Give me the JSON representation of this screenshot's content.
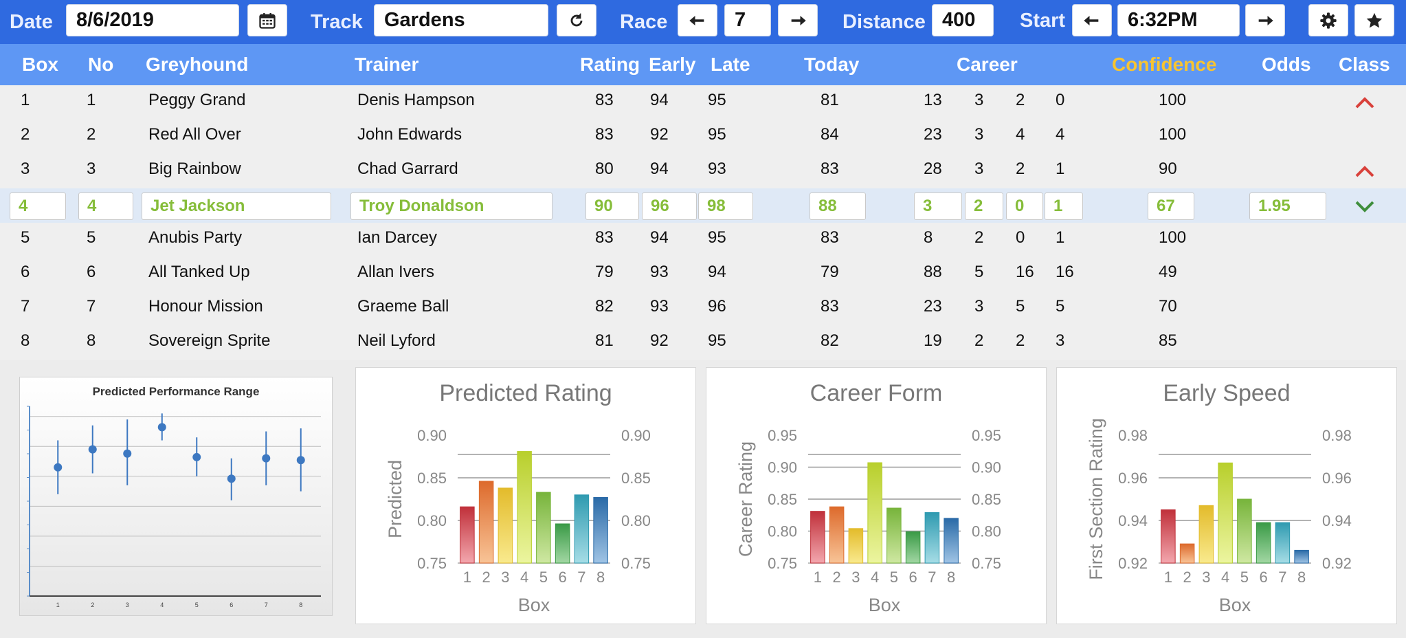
{
  "toolbar": {
    "date_label": "Date",
    "date_value": "8/6/2019",
    "track_label": "Track",
    "track_value": "Gardens",
    "race_label": "Race",
    "race_value": "7",
    "distance_label": "Distance",
    "distance_value": "400",
    "start_label": "Start",
    "start_value": "6:32PM",
    "icons": [
      "calendar-icon",
      "refresh-icon",
      "arrow-left-icon",
      "arrow-right-icon",
      "gear-icon",
      "star-icon"
    ]
  },
  "columns": {
    "box": "Box",
    "no": "No",
    "greyhound": "Greyhound",
    "trainer": "Trainer",
    "rating": "Rating",
    "early": "Early",
    "late": "Late",
    "today": "Today",
    "career": "Career",
    "confidence": "Confidence",
    "odds": "Odds",
    "class": "Class"
  },
  "rows": [
    {
      "box": "1",
      "no": "1",
      "greyhound": "Peggy Grand",
      "trainer": "Denis Hampson",
      "rating": "83",
      "early": "94",
      "late": "95",
      "today": "81",
      "c1": "13",
      "c2": "3",
      "c3": "2",
      "c4": "0",
      "confidence": "100",
      "odds": "",
      "class_icon": "caret-up-icon"
    },
    {
      "box": "2",
      "no": "2",
      "greyhound": "Red All Over",
      "trainer": "John Edwards",
      "rating": "83",
      "early": "92",
      "late": "95",
      "today": "84",
      "c1": "23",
      "c2": "3",
      "c3": "4",
      "c4": "4",
      "confidence": "100",
      "odds": "",
      "class_icon": ""
    },
    {
      "box": "3",
      "no": "3",
      "greyhound": "Big Rainbow",
      "trainer": "Chad Garrard",
      "rating": "80",
      "early": "94",
      "late": "93",
      "today": "83",
      "c1": "28",
      "c2": "3",
      "c3": "2",
      "c4": "1",
      "confidence": "90",
      "odds": "",
      "class_icon": "caret-up-icon"
    },
    {
      "box": "4",
      "no": "4",
      "greyhound": "Jet Jackson",
      "trainer": "Troy Donaldson",
      "rating": "90",
      "early": "96",
      "late": "98",
      "today": "88",
      "c1": "3",
      "c2": "2",
      "c3": "0",
      "c4": "1",
      "confidence": "67",
      "odds": "1.95",
      "class_icon": "caret-down-icon"
    },
    {
      "box": "5",
      "no": "5",
      "greyhound": "Anubis Party",
      "trainer": "Ian Darcey",
      "rating": "83",
      "early": "94",
      "late": "95",
      "today": "83",
      "c1": "8",
      "c2": "2",
      "c3": "0",
      "c4": "1",
      "confidence": "100",
      "odds": "",
      "class_icon": ""
    },
    {
      "box": "6",
      "no": "6",
      "greyhound": "All Tanked Up",
      "trainer": "Allan Ivers",
      "rating": "79",
      "early": "93",
      "late": "94",
      "today": "79",
      "c1": "88",
      "c2": "5",
      "c3": "16",
      "c4": "16",
      "confidence": "49",
      "odds": "",
      "class_icon": ""
    },
    {
      "box": "7",
      "no": "7",
      "greyhound": "Honour Mission",
      "trainer": "Graeme Ball",
      "rating": "82",
      "early": "93",
      "late": "96",
      "today": "83",
      "c1": "23",
      "c2": "3",
      "c3": "5",
      "c4": "5",
      "confidence": "70",
      "odds": "",
      "class_icon": ""
    },
    {
      "box": "8",
      "no": "8",
      "greyhound": "Sovereign Sprite",
      "trainer": "Neil Lyford",
      "rating": "81",
      "early": "92",
      "late": "95",
      "today": "82",
      "c1": "19",
      "c2": "2",
      "c3": "2",
      "c4": "3",
      "confidence": "85",
      "odds": "",
      "class_icon": ""
    }
  ],
  "selected_row": 3,
  "colors": {
    "toolbar": "#2f6ae0",
    "header": "#5e97f4",
    "confidence_header": "#f7c431",
    "selected_text": "#86bd3a",
    "caret_up": "#d9413b",
    "caret_down": "#3f8e3c"
  },
  "chart_data": [
    {
      "type": "scatter",
      "title": "Predicted Performance Range",
      "categories": [
        "1",
        "2",
        "3",
        "4",
        "5",
        "6",
        "7",
        "8"
      ],
      "values": [
        0.815,
        0.845,
        0.838,
        0.882,
        0.832,
        0.796,
        0.83,
        0.827
      ],
      "low": [
        0.77,
        0.805,
        0.785,
        0.86,
        0.8,
        0.76,
        0.785,
        0.775
      ],
      "high": [
        0.86,
        0.885,
        0.895,
        0.905,
        0.865,
        0.83,
        0.875,
        0.88
      ],
      "ylim": [
        0.6,
        0.91
      ],
      "xlabel": "",
      "ylabel": "",
      "grid": true
    },
    {
      "type": "bar",
      "title": "Predicted Rating",
      "categories": [
        "1",
        "2",
        "3",
        "4",
        "5",
        "6",
        "7",
        "8"
      ],
      "values": [
        0.816,
        0.846,
        0.838,
        0.881,
        0.833,
        0.796,
        0.83,
        0.827
      ],
      "xlabel": "Box",
      "ylabel": "Predicted",
      "ylim": [
        0.75,
        0.9
      ],
      "yticks": [
        "0.75",
        "0.80",
        "0.85",
        "0.90"
      ],
      "grid": true
    },
    {
      "type": "bar",
      "title": "Career Form",
      "categories": [
        "1",
        "2",
        "3",
        "4",
        "5",
        "6",
        "7",
        "8"
      ],
      "values": [
        0.831,
        0.838,
        0.804,
        0.907,
        0.836,
        0.799,
        0.829,
        0.82
      ],
      "xlabel": "Box",
      "ylabel": "Career Rating",
      "ylim": [
        0.75,
        0.95
      ],
      "yticks": [
        "0.75",
        "0.80",
        "0.85",
        "0.90",
        "0.95"
      ],
      "grid": true
    },
    {
      "type": "bar",
      "title": "Early Speed",
      "categories": [
        "1",
        "2",
        "3",
        "4",
        "5",
        "6",
        "7",
        "8"
      ],
      "values": [
        0.945,
        0.929,
        0.947,
        0.967,
        0.95,
        0.939,
        0.939,
        0.926
      ],
      "xlabel": "Box",
      "ylabel": "First Section Rating",
      "ylim": [
        0.92,
        0.98
      ],
      "yticks": [
        "0.92",
        "0.94",
        "0.96",
        "0.98"
      ],
      "grid": true
    }
  ]
}
